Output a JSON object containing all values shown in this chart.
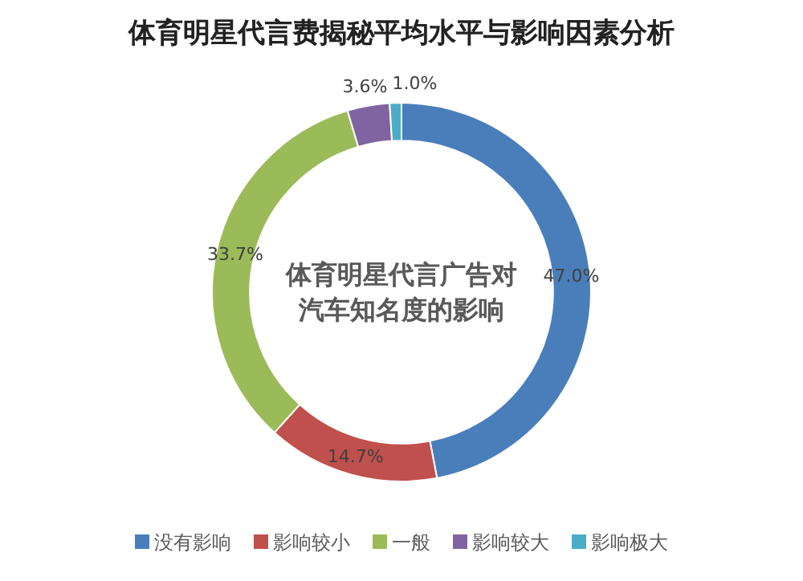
{
  "chart_data": {
    "type": "donut",
    "title": "体育明星代言费揭秘平均水平与影响因素分析",
    "annotations": [
      "体育明星代言广告对汽车知名度的影响"
    ],
    "categories": [
      "没有影响",
      "影响较小",
      "一般",
      "影响较大",
      "影响极大"
    ],
    "values": [
      47.0,
      14.7,
      33.7,
      3.6,
      1.0
    ],
    "value_labels": [
      "47.0%",
      "14.7%",
      "33.7%",
      "3.6%",
      "1.0%"
    ],
    "colors": [
      "#4a7ebb",
      "#c0504d",
      "#9bbb59",
      "#8064a2",
      "#4bacc6"
    ],
    "legend": "bottom"
  }
}
